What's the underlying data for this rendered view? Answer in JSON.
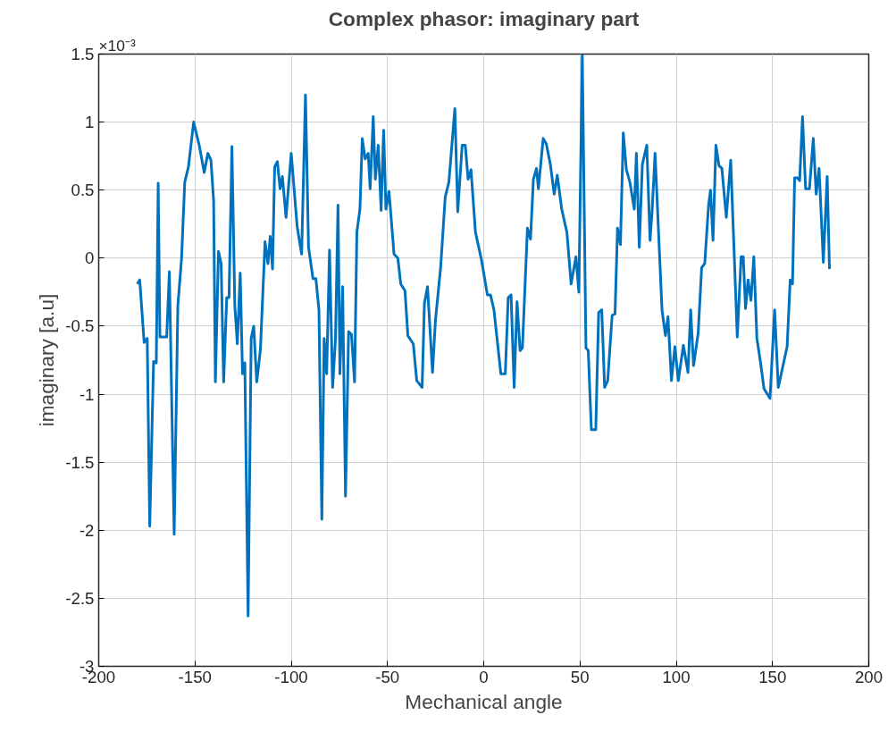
{
  "chart_data": {
    "type": "line",
    "title": "Complex phasor: imaginary part",
    "xlabel": "Mechanical angle",
    "ylabel": "imaginary [a.u]",
    "annotations": [
      "×10⁻³"
    ],
    "xlim": [
      -200,
      200
    ],
    "xticks": [
      -200,
      -150,
      -100,
      -50,
      0,
      50,
      100,
      150,
      200
    ],
    "ylim": [
      -3,
      1.5
    ],
    "yticks": [
      -3,
      -2.5,
      -2,
      -1.5,
      -1,
      -0.5,
      0,
      0.5,
      1,
      1.5
    ],
    "grid": true,
    "line_style": "solid",
    "marker": "none",
    "series": [
      {
        "color": "#0072bd",
        "x": [
          -180,
          -178.7,
          -176.4,
          -174.8,
          -173.5,
          -171.5,
          -170.1,
          -169.1,
          -168.2,
          -164.7,
          -163.3,
          -160.8,
          -158.9,
          -157,
          -155.3,
          -153.4,
          -150.7,
          -147.8,
          -145.2,
          -143.3,
          -141.7,
          -140.3,
          -139.4,
          -137.8,
          -136.4,
          -135.1,
          -133.5,
          -132.3,
          -130.8,
          -129.3,
          -128,
          -126.5,
          -125.3,
          -124.1,
          -122.4,
          -120.8,
          -119.5,
          -117.9,
          -116,
          -113.6,
          -112.1,
          -110.9,
          -109.7,
          -108.6,
          -107.2,
          -105.8,
          -104.6,
          -102.7,
          -100,
          -96.9,
          -94.6,
          -92.6,
          -91,
          -88.7,
          -87.2,
          -85.6,
          -84.1,
          -82.9,
          -81.6,
          -80.1,
          -78.5,
          -77,
          -75.7,
          -74.7,
          -73.3,
          -71.8,
          -70.2,
          -68.7,
          -67.1,
          -65.9,
          -64.3,
          -63.1,
          -61.6,
          -60,
          -59,
          -57.4,
          -56.3,
          -54.8,
          -53.3,
          -52,
          -50.8,
          -49.2,
          -46.6,
          -44.6,
          -43.1,
          -40.9,
          -39.4,
          -36.6,
          -34.8,
          -32,
          -30.8,
          -29.2,
          -26.6,
          -25.1,
          -22.4,
          -20,
          -18.1,
          -15,
          -13.5,
          -11.2,
          -9.6,
          -8.1,
          -6.6,
          -4.3,
          -1.2,
          1.9,
          3.5,
          5.3,
          8.9,
          11.2,
          12.7,
          14.2,
          15.8,
          17.3,
          18.9,
          20.1,
          22.7,
          24.3,
          25.8,
          27.4,
          28.4,
          30.9,
          32.5,
          34.6,
          36.6,
          38.2,
          40.5,
          43.2,
          45.4,
          47.9,
          49.4,
          51.2,
          53.1,
          54.3,
          55.9,
          58.2,
          59.7,
          61.3,
          62.8,
          64.4,
          66.7,
          68.2,
          69.5,
          71,
          72.5,
          74.1,
          75.9,
          78.2,
          79.3,
          80.8,
          82.4,
          84.7,
          86.4,
          87.5,
          89,
          92.6,
          94.4,
          95.7,
          97.5,
          99.3,
          101.1,
          103.7,
          106.1,
          107.5,
          109,
          111.4,
          113.2,
          114.8,
          116.8,
          117.8,
          119.1,
          120.6,
          122.2,
          123.7,
          126,
          128.3,
          131.7,
          133.7,
          134.8,
          136,
          137.3,
          138.8,
          140.3,
          141.9,
          143.7,
          145.6,
          148.7,
          151.1,
          153,
          157.6,
          159.2,
          160.4,
          161.5,
          163,
          164.1,
          165.6,
          167.2,
          169.2,
          171.2,
          172.7,
          174.2,
          176.4,
          178.4,
          179.6
        ],
        "values": [
          -0.19,
          -0.16,
          -0.62,
          -0.59,
          -1.97,
          -0.76,
          -0.77,
          0.55,
          -0.58,
          -0.58,
          -0.1,
          -2.03,
          -0.35,
          -0.01,
          0.56,
          0.67,
          1.0,
          0.83,
          0.63,
          0.77,
          0.72,
          0.42,
          -0.91,
          0.05,
          -0.04,
          -0.91,
          -0.29,
          -0.29,
          0.82,
          -0.35,
          -0.63,
          -0.11,
          -0.85,
          -0.77,
          -2.63,
          -0.59,
          -0.5,
          -0.91,
          -0.67,
          0.12,
          -0.04,
          0.16,
          -0.08,
          0.67,
          0.71,
          0.51,
          0.6,
          0.3,
          0.77,
          0.23,
          0.03,
          1.2,
          0.08,
          -0.15,
          -0.15,
          -0.38,
          -1.92,
          -0.59,
          -0.85,
          0.06,
          -0.95,
          -0.59,
          0.39,
          -0.85,
          -0.21,
          -1.75,
          -0.54,
          -0.56,
          -0.91,
          0.19,
          0.36,
          0.88,
          0.73,
          0.77,
          0.51,
          1.04,
          0.58,
          0.83,
          0.35,
          0.94,
          0.36,
          0.49,
          0.03,
          0.0,
          -0.19,
          -0.24,
          -0.57,
          -0.63,
          -0.9,
          -0.95,
          -0.33,
          -0.21,
          -0.84,
          -0.46,
          -0.07,
          0.45,
          0.56,
          1.1,
          0.34,
          0.83,
          0.83,
          0.58,
          0.65,
          0.19,
          -0.01,
          -0.27,
          -0.27,
          -0.38,
          -0.85,
          -0.85,
          -0.29,
          -0.27,
          -0.95,
          -0.32,
          -0.68,
          -0.66,
          0.22,
          0.14,
          0.58,
          0.66,
          0.51,
          0.88,
          0.84,
          0.69,
          0.47,
          0.61,
          0.36,
          0.19,
          -0.19,
          0.01,
          -0.25,
          1.49,
          -0.66,
          -0.68,
          -1.26,
          -1.26,
          -0.4,
          -0.38,
          -0.95,
          -0.9,
          -0.42,
          -0.41,
          0.22,
          0.1,
          0.92,
          0.65,
          0.56,
          0.36,
          0.77,
          0.08,
          0.69,
          0.83,
          0.13,
          0.36,
          0.77,
          -0.38,
          -0.57,
          -0.43,
          -0.9,
          -0.65,
          -0.9,
          -0.64,
          -0.84,
          -0.38,
          -0.79,
          -0.55,
          -0.07,
          -0.04,
          0.39,
          0.5,
          0.13,
          0.83,
          0.68,
          0.66,
          0.3,
          0.72,
          -0.58,
          0.01,
          0.01,
          -0.37,
          -0.16,
          -0.31,
          0.01,
          -0.59,
          -0.76,
          -0.96,
          -1.03,
          -0.38,
          -0.95,
          -0.65,
          -0.16,
          -0.19,
          0.59,
          0.59,
          0.57,
          1.04,
          0.51,
          0.51,
          0.88,
          0.47,
          0.66,
          -0.03,
          0.6,
          -0.08
        ]
      }
    ]
  }
}
